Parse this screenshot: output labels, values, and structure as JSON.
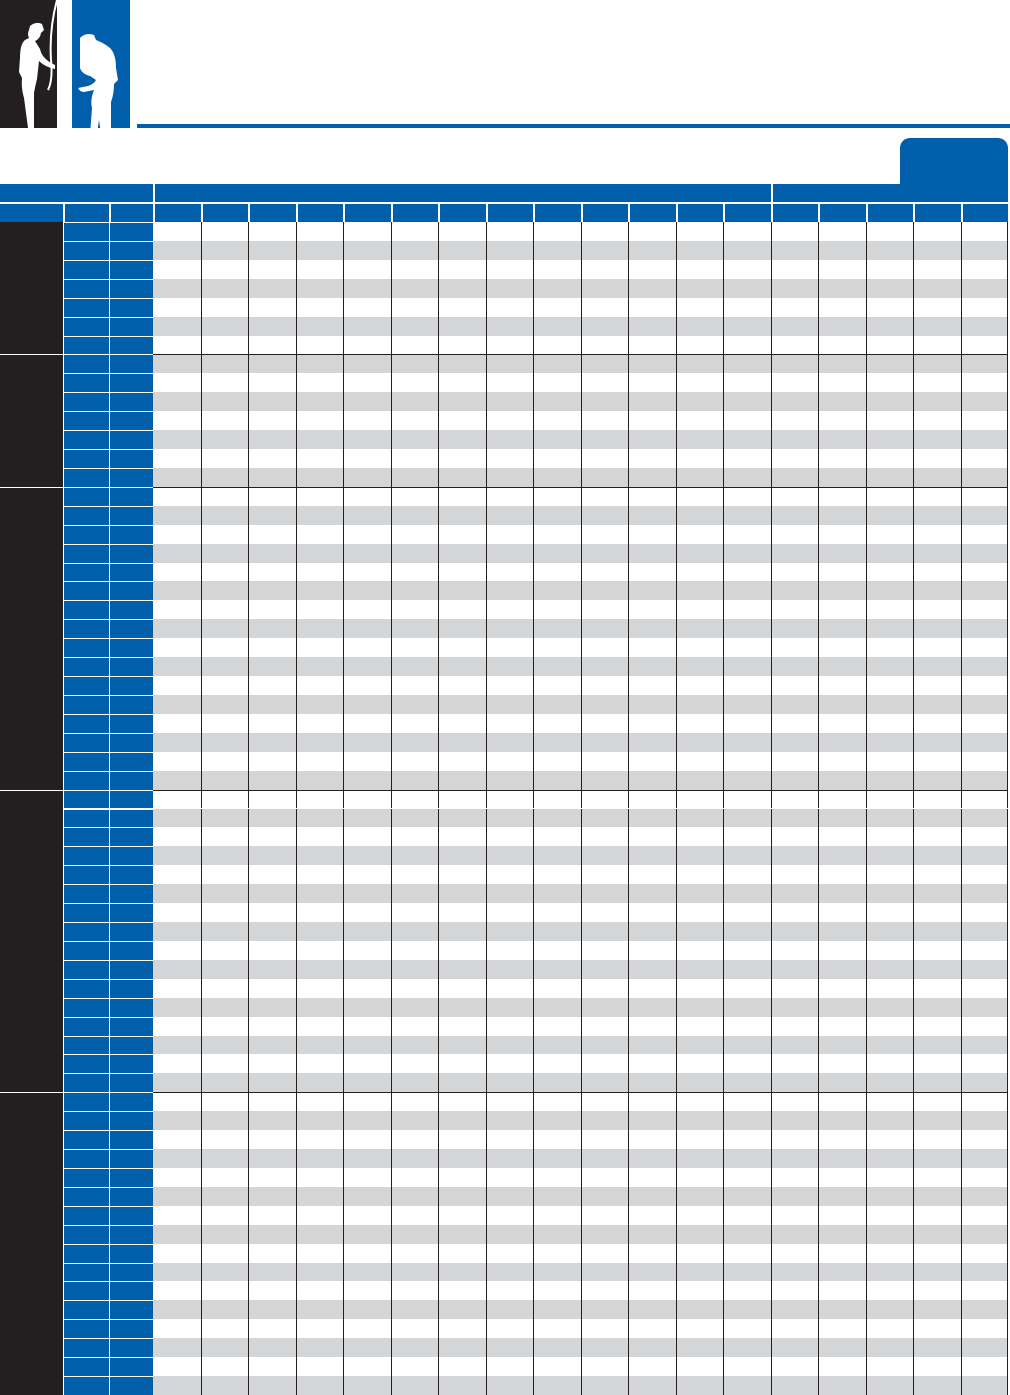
{
  "colors": {
    "brand_blue": "#005eab",
    "group_dark": "#231f20",
    "stripe_gray": "#d4d5d7",
    "background": "#ffffff"
  },
  "logo": {
    "icon": "two-linemen-at-utility-pole-silhouette"
  },
  "table": {
    "header_groups": [
      "",
      "",
      ""
    ],
    "header_columns": [
      "",
      "",
      "",
      "",
      "",
      "",
      "",
      "",
      "",
      "",
      "",
      "",
      "",
      "",
      "",
      "",
      "",
      "",
      "",
      "",
      ""
    ],
    "row_groups": [
      {
        "label": "",
        "rows": 7
      },
      {
        "label": "",
        "rows": 7
      },
      {
        "label": "",
        "rows": 16
      },
      {
        "label": "",
        "rows": 16
      },
      {
        "label": "",
        "rows": 16
      }
    ]
  }
}
